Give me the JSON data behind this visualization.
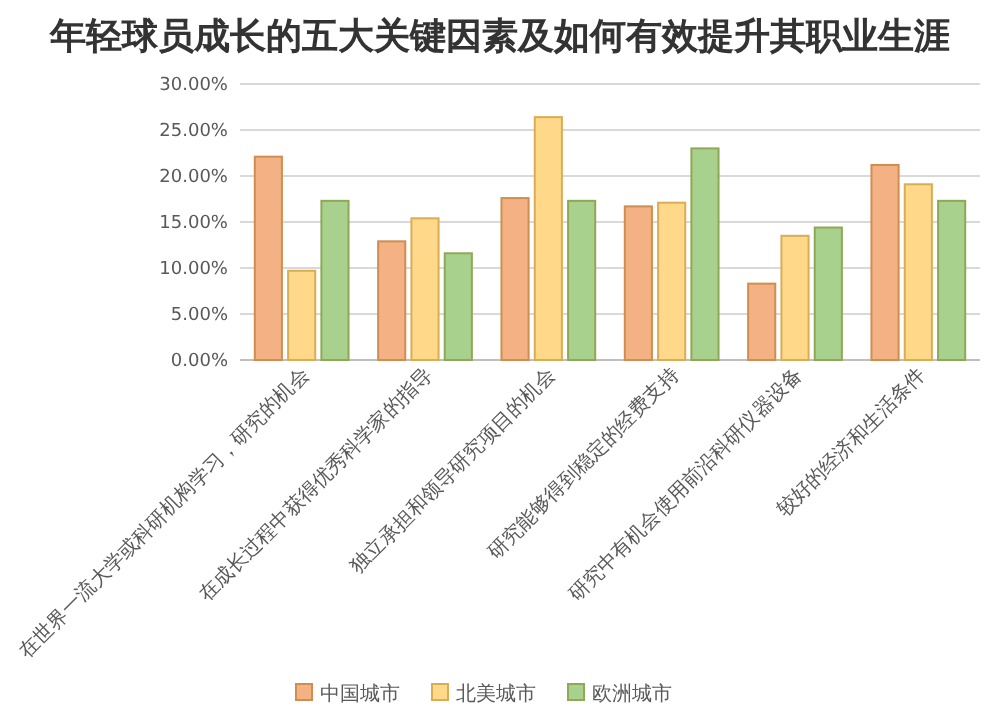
{
  "chart_data": {
    "type": "bar",
    "title": "年轻球员成长的五大关键因素及如何有效提升其职业生涯",
    "categories": [
      "在世界一流大学或科研机构学习，研究的机会",
      "在成长过程中获得优秀科学家的指导",
      "独立承担和领导研究项目的机会",
      "研究能够得到稳定的经费支持",
      "研究中有机会使用前沿科研仪器设备",
      "较好的经济和生活条件"
    ],
    "series": [
      {
        "name": "中国城市",
        "color": "#f4b183",
        "values": [
          22.1,
          12.9,
          17.6,
          16.7,
          8.3,
          21.2
        ]
      },
      {
        "name": "北美城市",
        "color": "#ffd88a",
        "values": [
          9.7,
          15.4,
          26.4,
          17.1,
          13.5,
          19.1
        ]
      },
      {
        "name": "欧洲城市",
        "color": "#a9d18e",
        "values": [
          17.3,
          11.6,
          17.3,
          23.0,
          14.4,
          17.3
        ]
      }
    ],
    "ylim": [
      0,
      30
    ],
    "yticks": [
      {
        "value": 0,
        "label": "0.00%"
      },
      {
        "value": 5,
        "label": "5.00%"
      },
      {
        "value": 10,
        "label": "10.00%"
      },
      {
        "value": 15,
        "label": "15.00%"
      },
      {
        "value": 20,
        "label": "20.00%"
      },
      {
        "value": 25,
        "label": "25.00%"
      },
      {
        "value": 30,
        "label": "30.00%"
      }
    ],
    "grid": "y",
    "legend": "bottom"
  }
}
